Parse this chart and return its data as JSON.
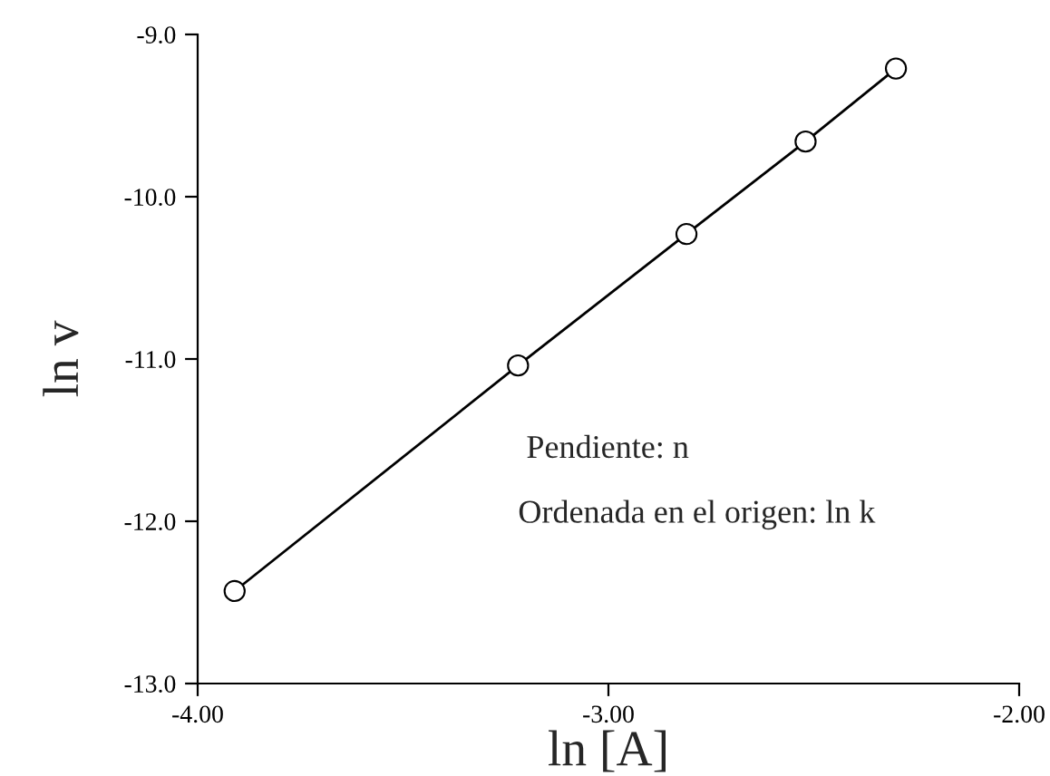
{
  "chart_data": {
    "type": "line",
    "xlabel": "ln [A]",
    "ylabel": "ln v",
    "x": [
      -3.91,
      -3.22,
      -2.81,
      -2.52,
      -2.3
    ],
    "series": [
      {
        "color": "#000000",
        "values": [
          -12.43,
          -11.04,
          -10.23,
          -9.66,
          -9.21
        ]
      }
    ],
    "marker": "circle",
    "line_style": "solid",
    "xlim": [
      -4.0,
      -2.0
    ],
    "xticks": [
      {
        "value": -4.0,
        "label": "-4.00"
      },
      {
        "value": -3.0,
        "label": "-3.00"
      },
      {
        "value": -2.0,
        "label": "-2.00"
      }
    ],
    "ylim": [
      -13.0,
      -9.0
    ],
    "yticks": [
      {
        "value": -13.0,
        "label": "-13.0"
      },
      {
        "value": -12.0,
        "label": "-12.0"
      },
      {
        "value": -11.0,
        "label": "-11.0"
      },
      {
        "value": -10.0,
        "label": "-10.0"
      },
      {
        "value": -9.0,
        "label": "-9.0"
      }
    ],
    "annotations": [
      "Pendiente: n",
      "Ordenada en el origen: ln k"
    ]
  }
}
